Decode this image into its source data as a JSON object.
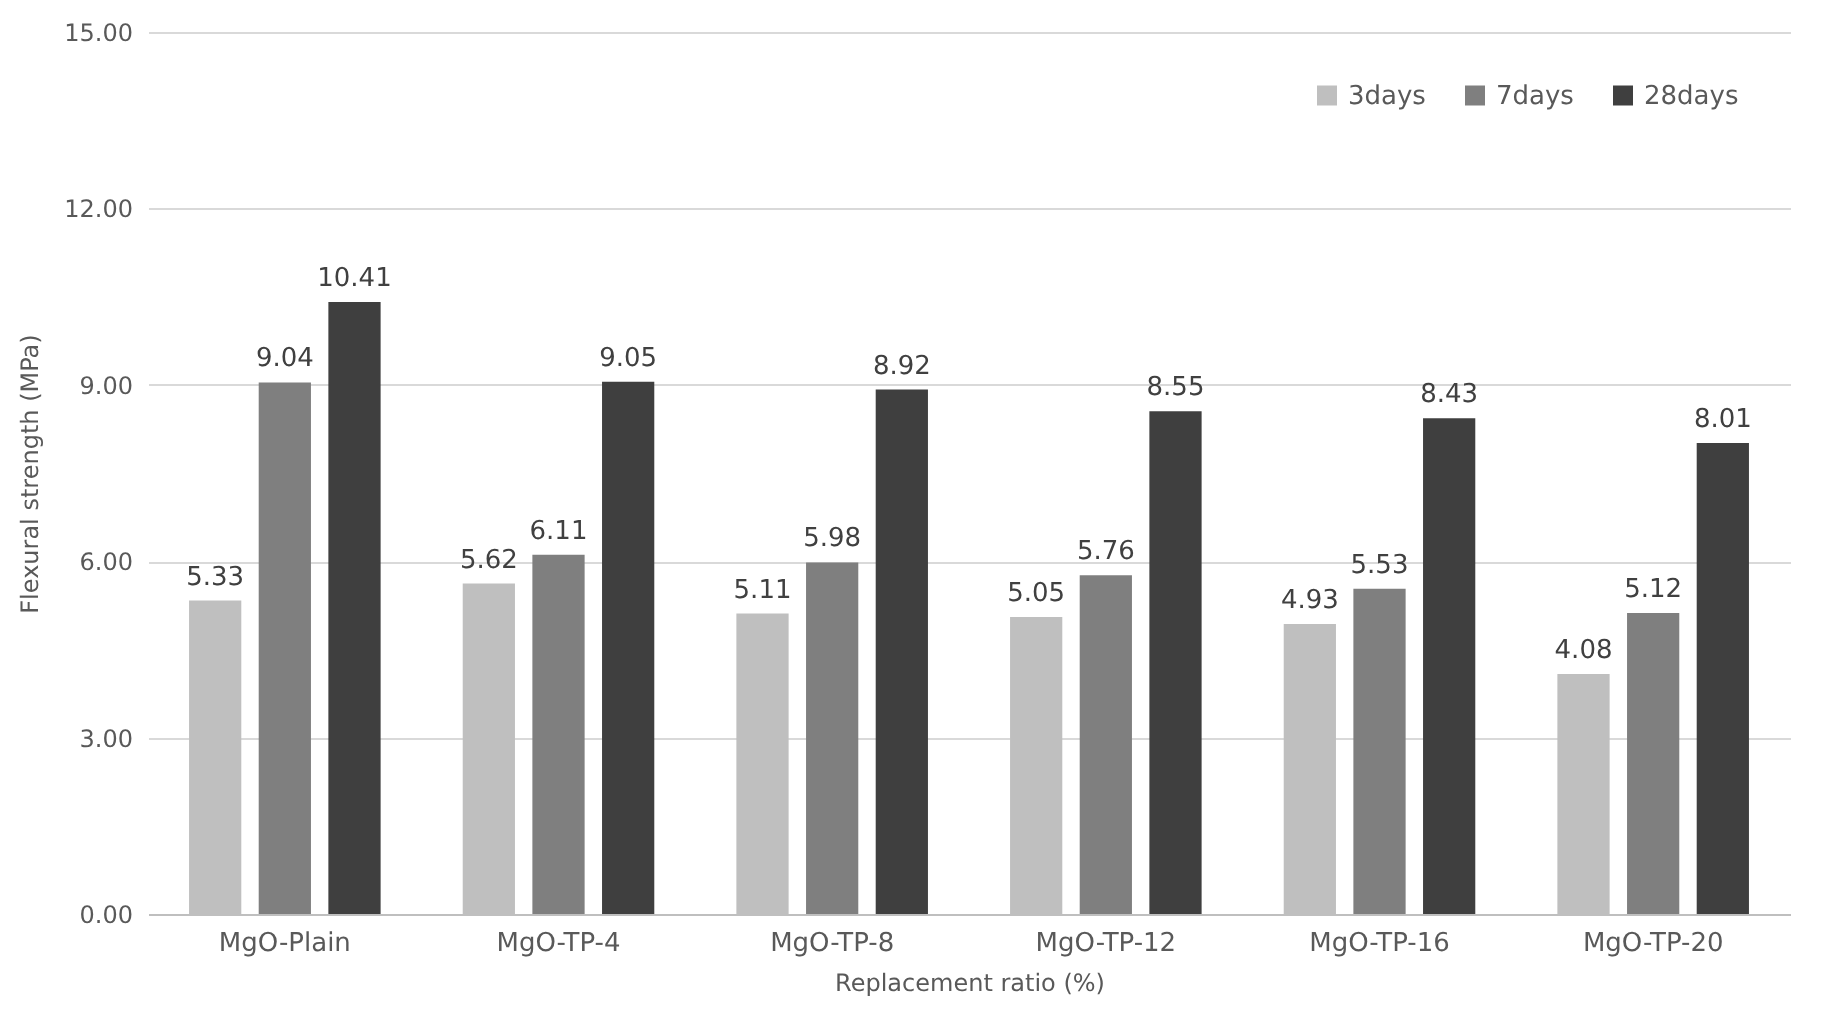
{
  "chart_data": {
    "type": "bar",
    "xlabel": "Replacement ratio (%)",
    "ylabel": "Flexural strength (MPa)",
    "categories": [
      "MgO-Plain",
      "MgO-TP-4",
      "MgO-TP-8",
      "MgO-TP-12",
      "MgO-TP-16",
      "MgO-TP-20"
    ],
    "series": [
      {
        "name": "3days",
        "color": "#bfbfbf",
        "values": [
          5.33,
          5.62,
          5.11,
          5.05,
          4.93,
          4.08
        ]
      },
      {
        "name": "7days",
        "color": "#7f7f7f",
        "values": [
          9.04,
          6.11,
          5.98,
          5.76,
          5.53,
          5.12
        ]
      },
      {
        "name": "28days",
        "color": "#3f3f3f",
        "values": [
          10.41,
          9.05,
          8.92,
          8.55,
          8.43,
          8.01
        ]
      }
    ],
    "ylim": [
      0,
      15
    ],
    "yticks": [
      {
        "value": 0,
        "label": "0.00"
      },
      {
        "value": 3,
        "label": "3.00"
      },
      {
        "value": 6,
        "label": "6.00"
      },
      {
        "value": 9,
        "label": "9.00"
      },
      {
        "value": 12,
        "label": "12.00"
      },
      {
        "value": 15,
        "label": "15.00"
      }
    ],
    "grid": "y",
    "legend": "top right",
    "data_labels": true
  }
}
